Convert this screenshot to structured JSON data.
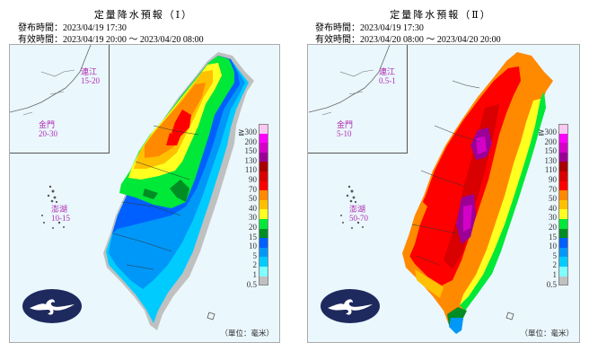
{
  "panels": [
    {
      "id": "I",
      "title": "定量降水預報（Ⅰ）",
      "issue_label": "發布時間：2023/04/19 17:30",
      "valid_label": "有效時間：2023/04/19 20:00 ～ 2023/04/20 08:00",
      "islands": {
        "matsu": {
          "name": "連江",
          "value": "15-20"
        },
        "kinmen": {
          "name": "金門",
          "value": "20-30"
        },
        "penghu": {
          "name": "澎湖",
          "value": "10-15"
        }
      },
      "unit": "（單位：毫米）"
    },
    {
      "id": "II",
      "title": "定量降水預報（Ⅱ）",
      "issue_label": "發布時間：2023/04/19 17:30",
      "valid_label": "有效時間：2023/04/20 08:00 ～ 2023/04/20 20:00",
      "islands": {
        "matsu": {
          "name": "連江",
          "value": "0.5-1"
        },
        "kinmen": {
          "name": "金門",
          "value": "5-10"
        },
        "penghu": {
          "name": "澎湖",
          "value": "50-70"
        }
      },
      "unit": "（單位：毫米）"
    }
  ],
  "legend": {
    "labels": [
      "≧300",
      "200",
      "150",
      "130",
      "110",
      "90",
      "70",
      "50",
      "40",
      "30",
      "20",
      "15",
      "10",
      "5",
      "2",
      "1",
      "0.5"
    ],
    "colors": [
      "#fbc8f4",
      "#ff00ff",
      "#d400c8",
      "#9b0097",
      "#a80000",
      "#d80000",
      "#ff0000",
      "#ff8a00",
      "#ffc000",
      "#ffff20",
      "#00e838",
      "#008d24",
      "#0060ff",
      "#0098f8",
      "#00cbff",
      "#80ffff",
      "#c0c0c0"
    ]
  },
  "colors": {
    "sea": "#eaf7fd",
    "island_label": "#b02fb0",
    "logo": "#1e2a5e"
  }
}
